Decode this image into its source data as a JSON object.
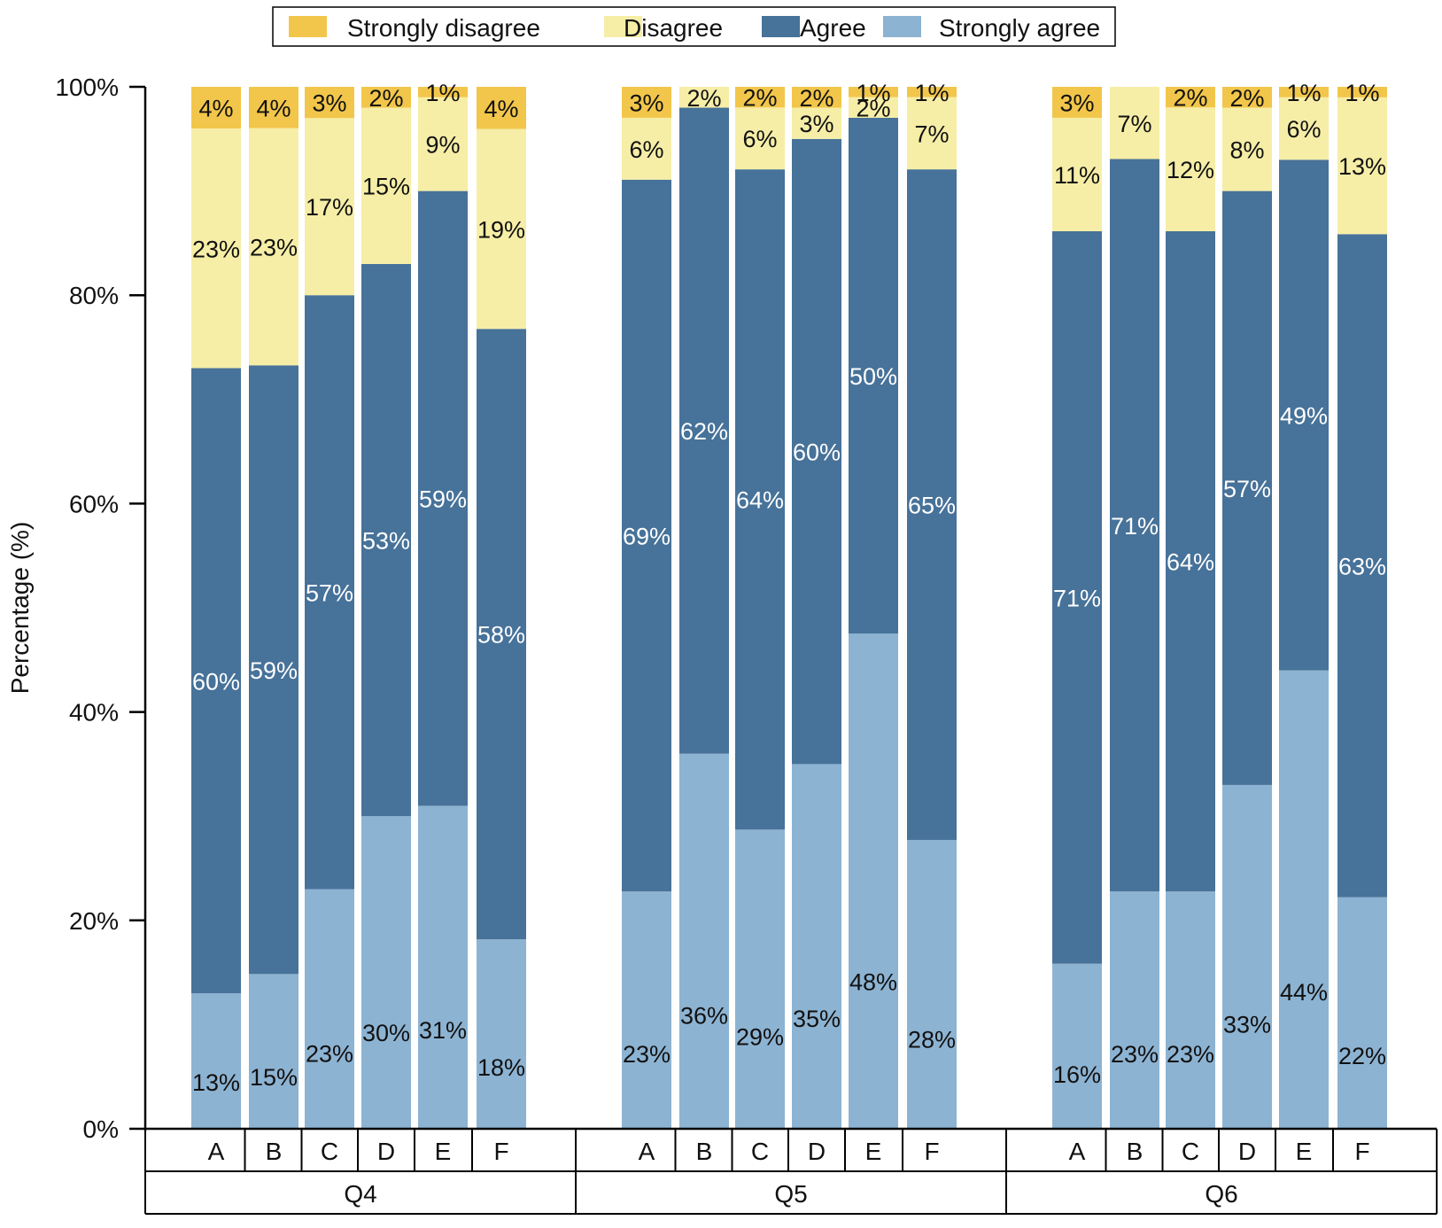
{
  "chart_data": {
    "type": "bar",
    "stacked": true,
    "ylabel": "Percentage (%)",
    "ylim": [
      0,
      100
    ],
    "y_ticks": [
      "0%",
      "20%",
      "40%",
      "60%",
      "80%",
      "100%"
    ],
    "legend_position": "top",
    "series": [
      {
        "name": "Strongly agree",
        "color": "#8db3d2",
        "label_color": "#111111"
      },
      {
        "name": "Agree",
        "color": "#477299",
        "label_color": "#ffffff"
      },
      {
        "name": "Disagree",
        "color": "#f6eea7",
        "label_color": "#111111"
      },
      {
        "name": "Strongly disagree",
        "color": "#f2c64a",
        "label_color": "#111111"
      }
    ],
    "legend_order": [
      "Strongly disagree",
      "Disagree",
      "Agree",
      "Strongly agree"
    ],
    "groups": [
      {
        "name": "Q4",
        "categories": [
          "A",
          "B",
          "C",
          "D",
          "E",
          "F"
        ],
        "values": [
          [
            13,
            60,
            23,
            4
          ],
          [
            15,
            59,
            23,
            4
          ],
          [
            23,
            57,
            17,
            3
          ],
          [
            30,
            53,
            15,
            2
          ],
          [
            31,
            59,
            9,
            1
          ],
          [
            18,
            58,
            19,
            4
          ]
        ],
        "labels": [
          [
            "13%",
            "60%",
            "23%",
            "4%"
          ],
          [
            "15%",
            "59%",
            "23%",
            "4%"
          ],
          [
            "23%",
            "57%",
            "17%",
            "3%"
          ],
          [
            "30%",
            "53%",
            "15%",
            "2%"
          ],
          [
            "31%",
            "59%",
            "9%",
            "1%"
          ],
          [
            "18%",
            "58%",
            "19%",
            "4%"
          ]
        ]
      },
      {
        "name": "Q5",
        "categories": [
          "A",
          "B",
          "C",
          "D",
          "E",
          "F"
        ],
        "values": [
          [
            23,
            69,
            6,
            3
          ],
          [
            36,
            62,
            2,
            0
          ],
          [
            29,
            64,
            6,
            2
          ],
          [
            35,
            60,
            3,
            2
          ],
          [
            48,
            50,
            2,
            1
          ],
          [
            28,
            65,
            7,
            1
          ]
        ],
        "labels": [
          [
            "23%",
            "69%",
            "6%",
            "3%"
          ],
          [
            "36%",
            "62%",
            "2%",
            ""
          ],
          [
            "29%",
            "64%",
            "6%",
            "2%"
          ],
          [
            "35%",
            "60%",
            "3%",
            "2%"
          ],
          [
            "48%",
            "50%",
            "2%",
            "1%"
          ],
          [
            "28%",
            "65%",
            "7%",
            "1%"
          ]
        ]
      },
      {
        "name": "Q6",
        "categories": [
          "A",
          "B",
          "C",
          "D",
          "E",
          "F"
        ],
        "values": [
          [
            16,
            71,
            11,
            3
          ],
          [
            23,
            71,
            7,
            0
          ],
          [
            23,
            64,
            12,
            2
          ],
          [
            33,
            57,
            8,
            2
          ],
          [
            44,
            49,
            6,
            1
          ],
          [
            22,
            63,
            13,
            1
          ]
        ],
        "labels": [
          [
            "16%",
            "71%",
            "11%",
            "3%"
          ],
          [
            "23%",
            "71%",
            "7%",
            ""
          ],
          [
            "23%",
            "64%",
            "12%",
            "2%"
          ],
          [
            "33%",
            "57%",
            "8%",
            "2%"
          ],
          [
            "44%",
            "49%",
            "6%",
            "1%"
          ],
          [
            "22%",
            "63%",
            "13%",
            "1%"
          ]
        ]
      }
    ]
  }
}
